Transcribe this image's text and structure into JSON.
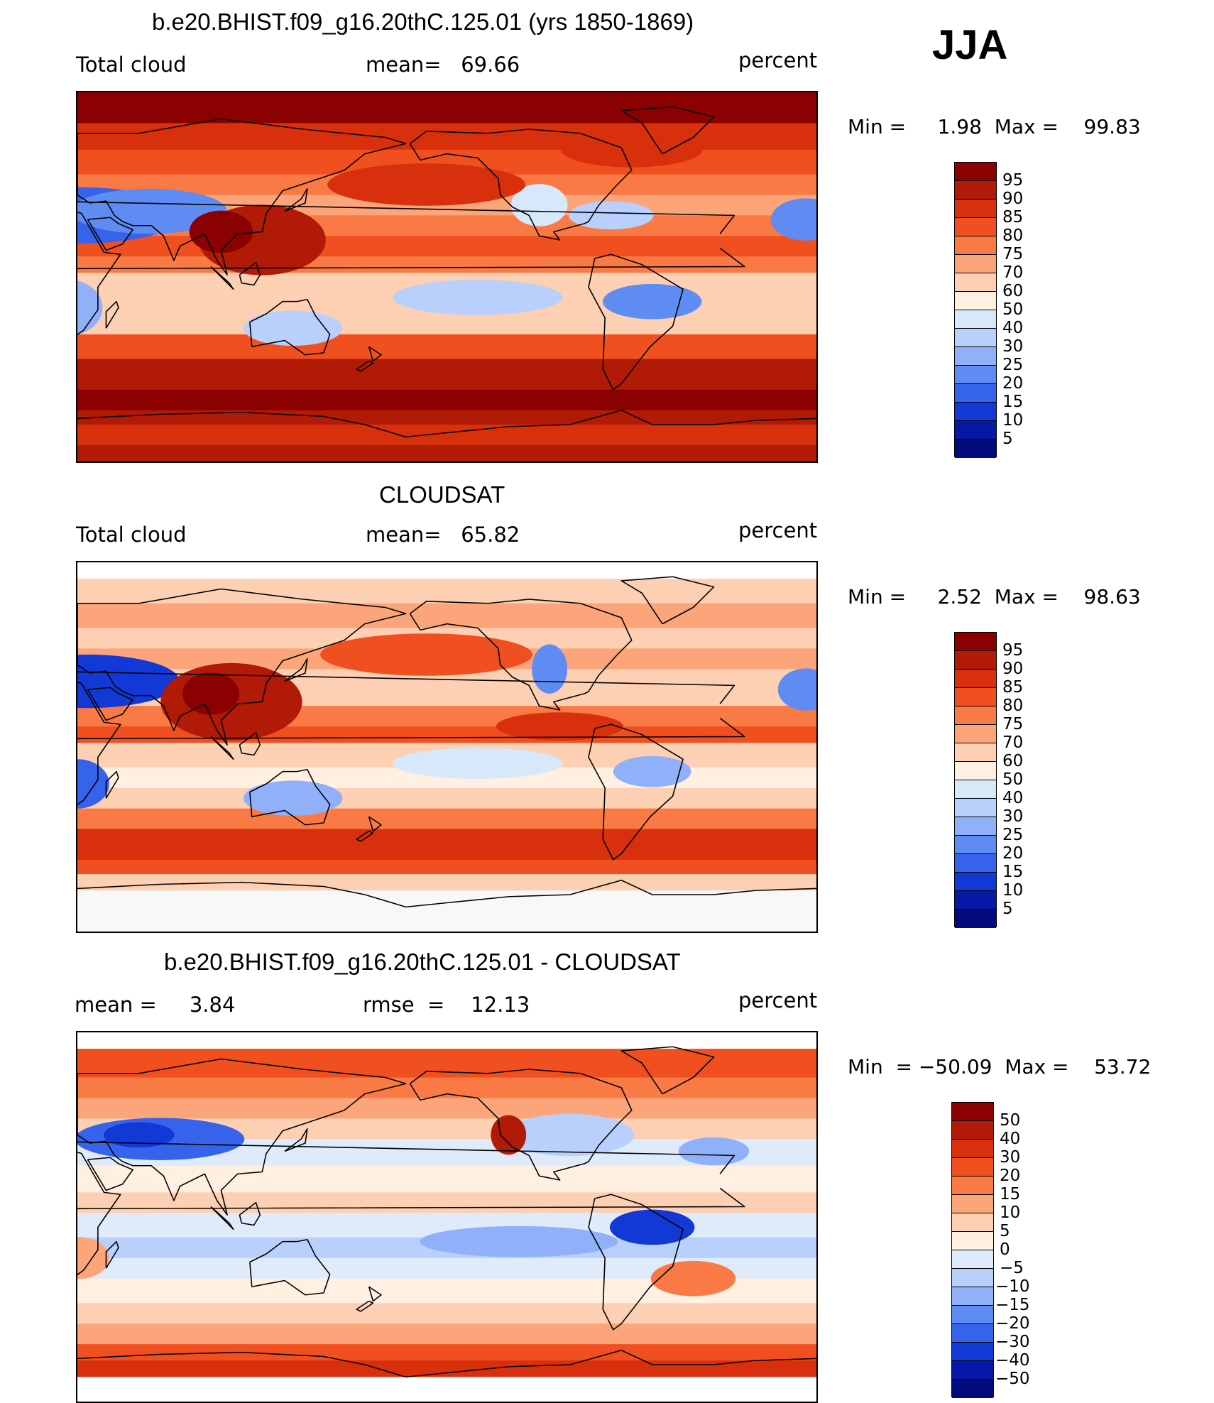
{
  "season": "JJA",
  "panels": [
    {
      "title": "b.e20.BHIST.f09_g16.20thC.125.01 (yrs 1850-1869)",
      "left_label": "Total cloud",
      "center_label": "mean=   69.66",
      "right_label": "percent",
      "minmax": "Min =     1.98  Max =    99.83",
      "colorbar": {
        "labels": [
          "95",
          "90",
          "85",
          "80",
          "75",
          "70",
          "60",
          "50",
          "40",
          "30",
          "25",
          "20",
          "15",
          "10",
          "5"
        ],
        "colors": [
          "#8b0000",
          "#b01a06",
          "#d8300c",
          "#f05020",
          "#f97a44",
          "#fca57a",
          "#fdd0b4",
          "#fff0e2",
          "#d6e8fa",
          "#b8d0fb",
          "#90b0fa",
          "#5f8cf3",
          "#3563ec",
          "#1238d5",
          "#0618a6",
          "#020a7c"
        ]
      },
      "variant": "model"
    },
    {
      "title": "CLOUDSAT",
      "left_label": "Total cloud",
      "center_label": "mean=   65.82",
      "right_label": "percent",
      "minmax": "Min =     2.52  Max =    98.63",
      "colorbar": {
        "labels": [
          "95",
          "90",
          "85",
          "80",
          "75",
          "70",
          "60",
          "50",
          "40",
          "30",
          "25",
          "20",
          "15",
          "10",
          "5"
        ],
        "colors": [
          "#8b0000",
          "#b01a06",
          "#d8300c",
          "#f05020",
          "#f97a44",
          "#fca57a",
          "#fdd0b4",
          "#fff0e2",
          "#d6e8fa",
          "#b8d0fb",
          "#90b0fa",
          "#5f8cf3",
          "#3563ec",
          "#1238d5",
          "#0618a6",
          "#020a7c"
        ]
      },
      "variant": "obs"
    },
    {
      "title": "b.e20.BHIST.f09_g16.20thC.125.01 - CLOUDSAT",
      "left_label": "mean =     3.84",
      "center_label": "rmse  =    12.13",
      "right_label": "percent",
      "minmax": "Min  = −50.09  Max =    53.72",
      "colorbar": {
        "labels": [
          "50",
          "40",
          "30",
          "20",
          "15",
          "10",
          "5",
          "0",
          "−5",
          "−10",
          "−15",
          "−20",
          "−30",
          "−40",
          "−50"
        ],
        "colors": [
          "#8b0000",
          "#b01a06",
          "#d8300c",
          "#f05020",
          "#f97a44",
          "#fca57a",
          "#fdd0b4",
          "#fff0e2",
          "#dfeafb",
          "#b8d0fb",
          "#90b0fa",
          "#5f8cf3",
          "#3563ec",
          "#1238d5",
          "#0618a6",
          "#020a7c"
        ]
      },
      "variant": "diff"
    }
  ]
}
